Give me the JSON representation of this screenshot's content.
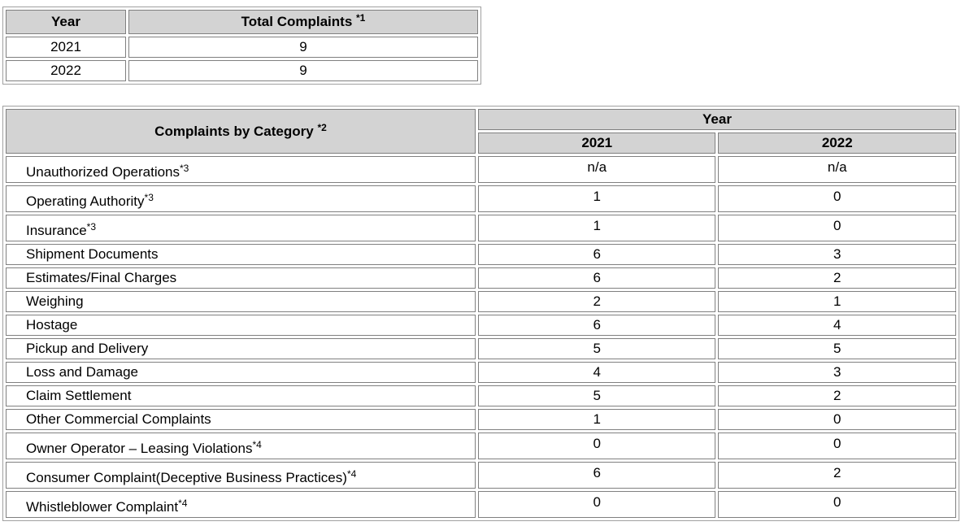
{
  "totals_table": {
    "header_year": "Year",
    "header_total": "Total Complaints",
    "header_total_note": "*1",
    "rows": [
      {
        "year": "2021",
        "total": "9"
      },
      {
        "year": "2022",
        "total": "9"
      }
    ]
  },
  "category_table": {
    "header_category": "Complaints by Category",
    "header_category_note": "*2",
    "header_year": "Year",
    "year_2021": "2021",
    "year_2022": "2022",
    "rows": [
      {
        "category": "Unauthorized Operations",
        "note": "*3",
        "y2021": "n/a",
        "y2022": "n/a"
      },
      {
        "category": "Operating Authority",
        "note": "*3",
        "y2021": "1",
        "y2022": "0"
      },
      {
        "category": "Insurance",
        "note": "*3",
        "y2021": "1",
        "y2022": "0"
      },
      {
        "category": "Shipment Documents",
        "note": "",
        "y2021": "6",
        "y2022": "3"
      },
      {
        "category": "Estimates/Final Charges",
        "note": "",
        "y2021": "6",
        "y2022": "2"
      },
      {
        "category": "Weighing",
        "note": "",
        "y2021": "2",
        "y2022": "1"
      },
      {
        "category": "Hostage",
        "note": "",
        "y2021": "6",
        "y2022": "4"
      },
      {
        "category": "Pickup and Delivery",
        "note": "",
        "y2021": "5",
        "y2022": "5"
      },
      {
        "category": "Loss and Damage",
        "note": "",
        "y2021": "4",
        "y2022": "3"
      },
      {
        "category": "Claim Settlement",
        "note": "",
        "y2021": "5",
        "y2022": "2"
      },
      {
        "category": "Other Commercial Complaints",
        "note": "",
        "y2021": "1",
        "y2022": "0"
      },
      {
        "category": "Owner Operator – Leasing Violations",
        "note": "*4",
        "y2021": "0",
        "y2022": "0"
      },
      {
        "category": "Consumer Complaint(Deceptive Business Practices)",
        "note": "*4",
        "y2021": "6",
        "y2022": "2"
      },
      {
        "category": "Whistleblower Complaint",
        "note": "*4",
        "y2021": "0",
        "y2022": "0"
      }
    ]
  }
}
